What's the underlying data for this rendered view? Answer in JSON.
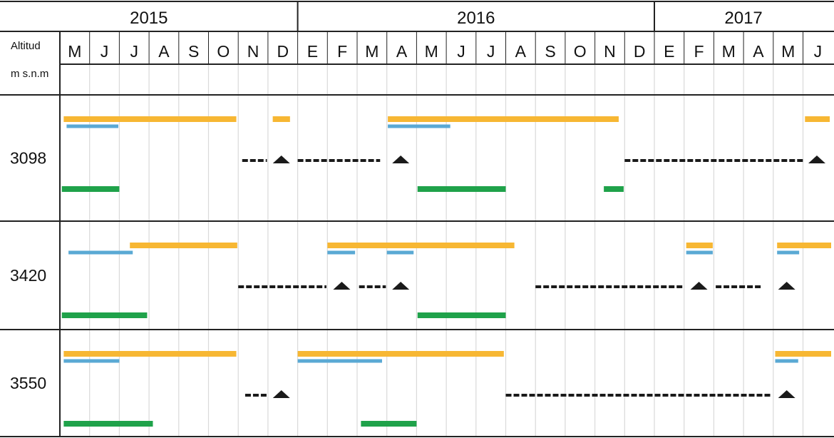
{
  "chart_data": {
    "type": "gantt",
    "corner_header": {
      "line1": "Altitud",
      "line2": "m s.n.m"
    },
    "years": [
      {
        "label": "2015",
        "months": [
          "M",
          "J",
          "J",
          "A",
          "S",
          "O",
          "N",
          "D"
        ]
      },
      {
        "label": "2016",
        "months": [
          "E",
          "F",
          "M",
          "A",
          "M",
          "J",
          "J",
          "A",
          "S",
          "O",
          "N",
          "D"
        ]
      },
      {
        "label": "2017",
        "months": [
          "E",
          "F",
          "M",
          "A",
          "M",
          "J"
        ]
      }
    ],
    "month_axis_start": "2015-05",
    "month_axis_end": "2017-06",
    "colors": {
      "orange": "#f7b733",
      "blue": "#5aa9d4",
      "green": "#1fa24a",
      "black": "#1a1a1a",
      "gridline": "#d9d9d9",
      "frame": "#222222"
    },
    "rows": [
      {
        "altitude": "3098",
        "orange": [
          [
            "2015-05-05",
            "2015-10-30"
          ],
          [
            "2015-12-06",
            "2015-12-24"
          ],
          [
            "2016-04-02",
            "2016-11-25"
          ],
          [
            "2017-06-03",
            "2017-06-28"
          ]
        ],
        "blue": [
          [
            "2015-05-08",
            "2015-06-30"
          ],
          [
            "2016-04-02",
            "2016-06-05"
          ]
        ],
        "green": [
          [
            "2015-05-03",
            "2015-07-01"
          ],
          [
            "2016-05-02",
            "2016-08-01"
          ],
          [
            "2016-11-10",
            "2016-11-30"
          ]
        ],
        "dashed": [
          [
            "2015-11-05",
            "2015-11-30"
          ],
          [
            "2016-01-01",
            "2016-03-25"
          ],
          [
            "2016-12-01",
            "2017-06-01"
          ]
        ],
        "triangles": [
          "2015-12-15",
          "2016-04-15",
          "2017-06-15"
        ]
      },
      {
        "altitude": "3420",
        "orange": [
          [
            "2015-07-12",
            "2015-10-31"
          ],
          [
            "2016-02-01",
            "2016-08-10"
          ],
          [
            "2017-02-03",
            "2017-02-28"
          ],
          [
            "2017-05-05",
            "2017-06-30"
          ]
        ],
        "blue": [
          [
            "2015-05-10",
            "2015-07-15"
          ],
          [
            "2016-02-01",
            "2016-02-28"
          ],
          [
            "2016-04-01",
            "2016-04-28"
          ],
          [
            "2017-02-03",
            "2017-02-28"
          ],
          [
            "2017-05-05",
            "2017-05-28"
          ]
        ],
        "green": [
          [
            "2015-05-03",
            "2015-07-30"
          ],
          [
            "2016-05-02",
            "2016-08-01"
          ]
        ],
        "dashed": [
          [
            "2015-11-01",
            "2016-01-31"
          ],
          [
            "2016-03-03",
            "2016-03-31"
          ],
          [
            "2016-09-01",
            "2017-01-31"
          ],
          [
            "2017-03-03",
            "2017-04-20"
          ]
        ],
        "triangles": [
          "2016-02-15",
          "2016-04-15",
          "2017-02-15",
          "2017-05-15"
        ]
      },
      {
        "altitude": "3550",
        "orange": [
          [
            "2015-05-05",
            "2015-10-30"
          ],
          [
            "2016-01-01",
            "2016-07-30"
          ],
          [
            "2017-05-03",
            "2017-06-30"
          ]
        ],
        "blue": [
          [
            "2015-05-05",
            "2015-07-01"
          ],
          [
            "2016-01-01",
            "2016-03-27"
          ],
          [
            "2017-05-03",
            "2017-05-27"
          ]
        ],
        "green": [
          [
            "2015-05-05",
            "2015-08-05"
          ],
          [
            "2016-03-05",
            "2016-05-01"
          ]
        ],
        "dashed": [
          [
            "2015-11-08",
            "2015-11-30"
          ],
          [
            "2016-08-01",
            "2017-04-30"
          ]
        ],
        "triangles": [
          "2015-12-15",
          "2017-05-15"
        ]
      }
    ]
  }
}
